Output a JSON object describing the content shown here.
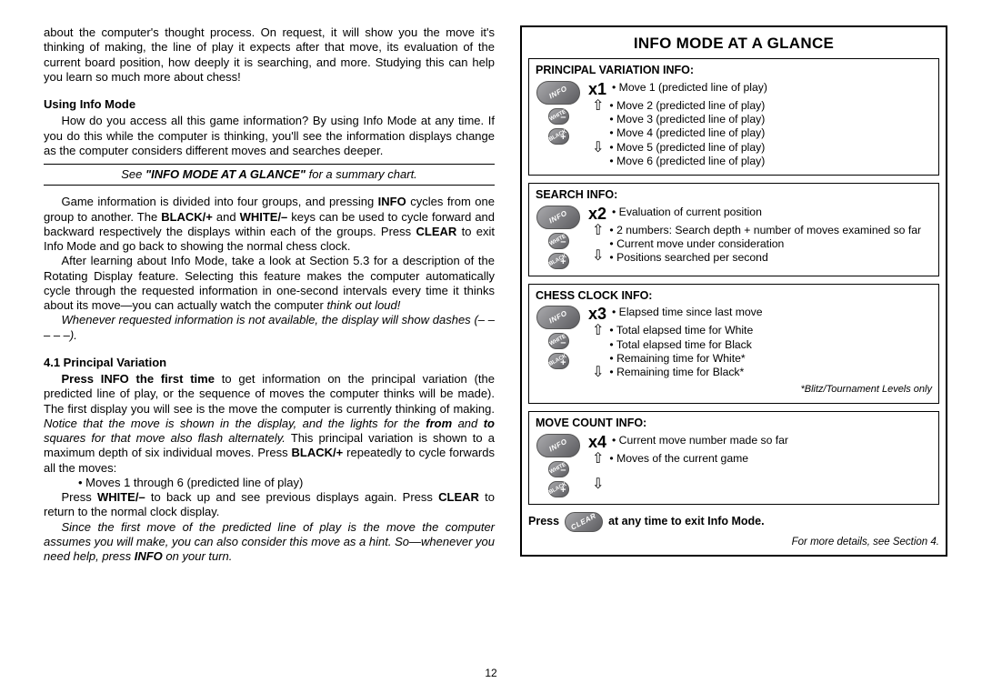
{
  "left": {
    "intro": "about the computer's thought process. On request, it will show you the move it's thinking of making, the line of play it expects after that move, its evaluation of the current board position, how deeply it is searching, and more. Studying this can help you learn so much more about chess!",
    "usingInfoHdr": "Using Info Mode",
    "usingInfo1": "How do you access all this game information? By using Info Mode at any time. If you do this while the computer is thinking, you'll see the information displays change as the computer considers different moves and searches deeper.",
    "refSee": "See ",
    "refBold": "\"INFO MODE AT A GLANCE\"",
    "refTail": " for a summary chart.",
    "para2a": "Game information is divided into four groups, and pressing ",
    "para2b": " cycles from one group to another. The ",
    "para2c": " and ",
    "para2d": " keys can be used to cycle forward and backward respectively the displays within each of the groups. Press ",
    "para2e": " to exit Info Mode and go back to showing the normal chess clock.",
    "info": "INFO",
    "black": "BLACK/+",
    "white": "WHITE/–",
    "clear": "CLEAR",
    "para3": "After learning about Info Mode, take a look at Section 5.3 for a description of the Rotating Display feature. Selecting this feature makes the computer automatically cycle through the requested information in one-second intervals every time it thinks about its move—you can actually watch the computer ",
    "para3em": "think out loud!",
    "para4": "Whenever requested information is not available, the display will show dashes (– – – – –).",
    "pvHdr": "4.1 Principal Variation",
    "pv1a": "Press INFO the first time",
    "pv1b": " to get information on the principal variation (the predicted line of play, or the sequence of moves the computer thinks will be made). The first display you will see is the move the computer is currently thinking of making. ",
    "pv1em": "Notice that the move is shown in the display, and the lights for the ",
    "pv1from": "from",
    "pv1mid": " and ",
    "pv1to": "to",
    "pv1em2": " squares for that move also flash alternately.",
    "pv1c": " This principal variation is shown to a maximum depth of six individual moves. Press ",
    "pv1d": " repeatedly to cycle forwards all the moves:",
    "bullet1": "Moves 1 through 6 (predicted line of play)",
    "pv2a": "Press ",
    "pv2b": " to back up and see previous displays again. Press ",
    "pv2c": " to return to the normal clock display.",
    "pv3a": "Since the first move of the predicted line of play is the move the computer assumes you will make, you can also consider this move as a hint. So—whenever you need help, press ",
    "pv3b": " on your turn.",
    "pageNum": "12"
  },
  "box": {
    "title": "INFO MODE AT A GLANCE",
    "sections": [
      {
        "title": "PRINCIPAL VARIATION INFO:",
        "x": "x1",
        "top": "Move 1 (predicted line of play)",
        "items": [
          "Move 2 (predicted line of play)",
          "Move 3 (predicted line of play)",
          "Move 4 (predicted line of play)",
          "Move 5 (predicted line of play)",
          "Move 6 (predicted line of play)"
        ]
      },
      {
        "title": "SEARCH INFO:",
        "x": "x2",
        "top": "Evaluation of current position",
        "items": [
          "2 numbers: Search depth + number of moves examined so far",
          "Current move under consideration",
          "Positions searched per second"
        ]
      },
      {
        "title": "CHESS CLOCK INFO:",
        "x": "x3",
        "top": "Elapsed time since last move",
        "items": [
          "Total elapsed time for White",
          "Total elapsed time for Black",
          "Remaining time for White*",
          "Remaining time for Black*"
        ],
        "footnote": "*Blitz/Tournament Levels only"
      },
      {
        "title": "MOVE COUNT INFO:",
        "x": "x4",
        "top": "Current move number made so far",
        "items": [
          "Moves of the current game"
        ]
      }
    ],
    "pressA": "Press",
    "pressB": "at any time to exit Info Mode.",
    "finalRef": "For more details, see Section 4.",
    "btnLabels": {
      "info": "INFO",
      "white": "WHITE",
      "black": "BLACK",
      "clear": "CLEAR"
    }
  }
}
